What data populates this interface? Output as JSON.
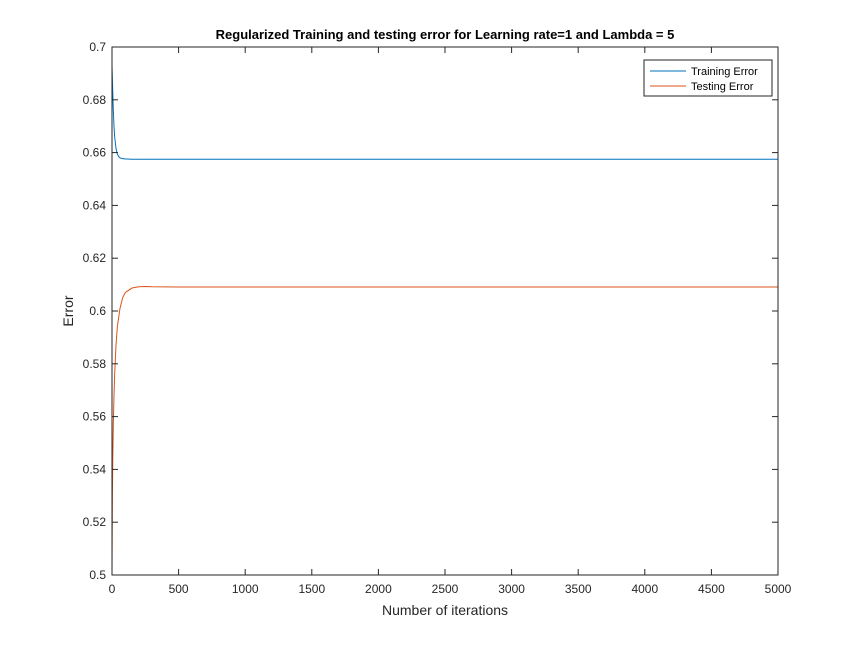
{
  "chart_data": {
    "type": "line",
    "title": "Regularized Training and testing error for Learning rate=1 and Lambda = 5",
    "xlabel": "Number of iterations",
    "ylabel": "Error",
    "xlim": [
      0,
      5000
    ],
    "ylim": [
      0.5,
      0.7
    ],
    "xticks": [
      0,
      500,
      1000,
      1500,
      2000,
      2500,
      3000,
      3500,
      4000,
      4500,
      5000
    ],
    "xtick_labels": [
      "0",
      "500",
      "1000",
      "1500",
      "2000",
      "2500",
      "3000",
      "3500",
      "4000",
      "4500",
      "5000"
    ],
    "yticks": [
      0.5,
      0.52,
      0.54,
      0.56,
      0.58,
      0.6,
      0.62,
      0.64,
      0.66,
      0.68,
      0.7
    ],
    "ytick_labels": [
      "0.5",
      "0.52",
      "0.54",
      "0.56",
      "0.58",
      "0.6",
      "0.62",
      "0.64",
      "0.66",
      "0.68",
      "0.7"
    ],
    "grid": false,
    "legend_position": "top-right",
    "series": [
      {
        "name": "Training Error",
        "color": "#0072BD",
        "x": [
          0,
          5,
          10,
          15,
          20,
          30,
          40,
          50,
          60,
          80,
          100,
          150,
          200,
          300,
          500,
          1000,
          2000,
          3000,
          4000,
          5000
        ],
        "y": [
          0.6931,
          0.684,
          0.676,
          0.67,
          0.666,
          0.6615,
          0.6595,
          0.6585,
          0.658,
          0.6577,
          0.6576,
          0.6575,
          0.6575,
          0.6575,
          0.6575,
          0.6575,
          0.6575,
          0.6575,
          0.6575,
          0.6575
        ]
      },
      {
        "name": "Testing Error",
        "color": "#D95319",
        "x": [
          0,
          3,
          6,
          10,
          15,
          20,
          30,
          40,
          60,
          80,
          100,
          150,
          200,
          250,
          300,
          500,
          1000,
          2000,
          3000,
          4000,
          5000
        ],
        "y": [
          0.5,
          0.53,
          0.545,
          0.557,
          0.568,
          0.576,
          0.587,
          0.594,
          0.601,
          0.605,
          0.607,
          0.6087,
          0.6092,
          0.6093,
          0.6092,
          0.6091,
          0.6091,
          0.6091,
          0.6091,
          0.6091,
          0.6091
        ]
      }
    ]
  }
}
